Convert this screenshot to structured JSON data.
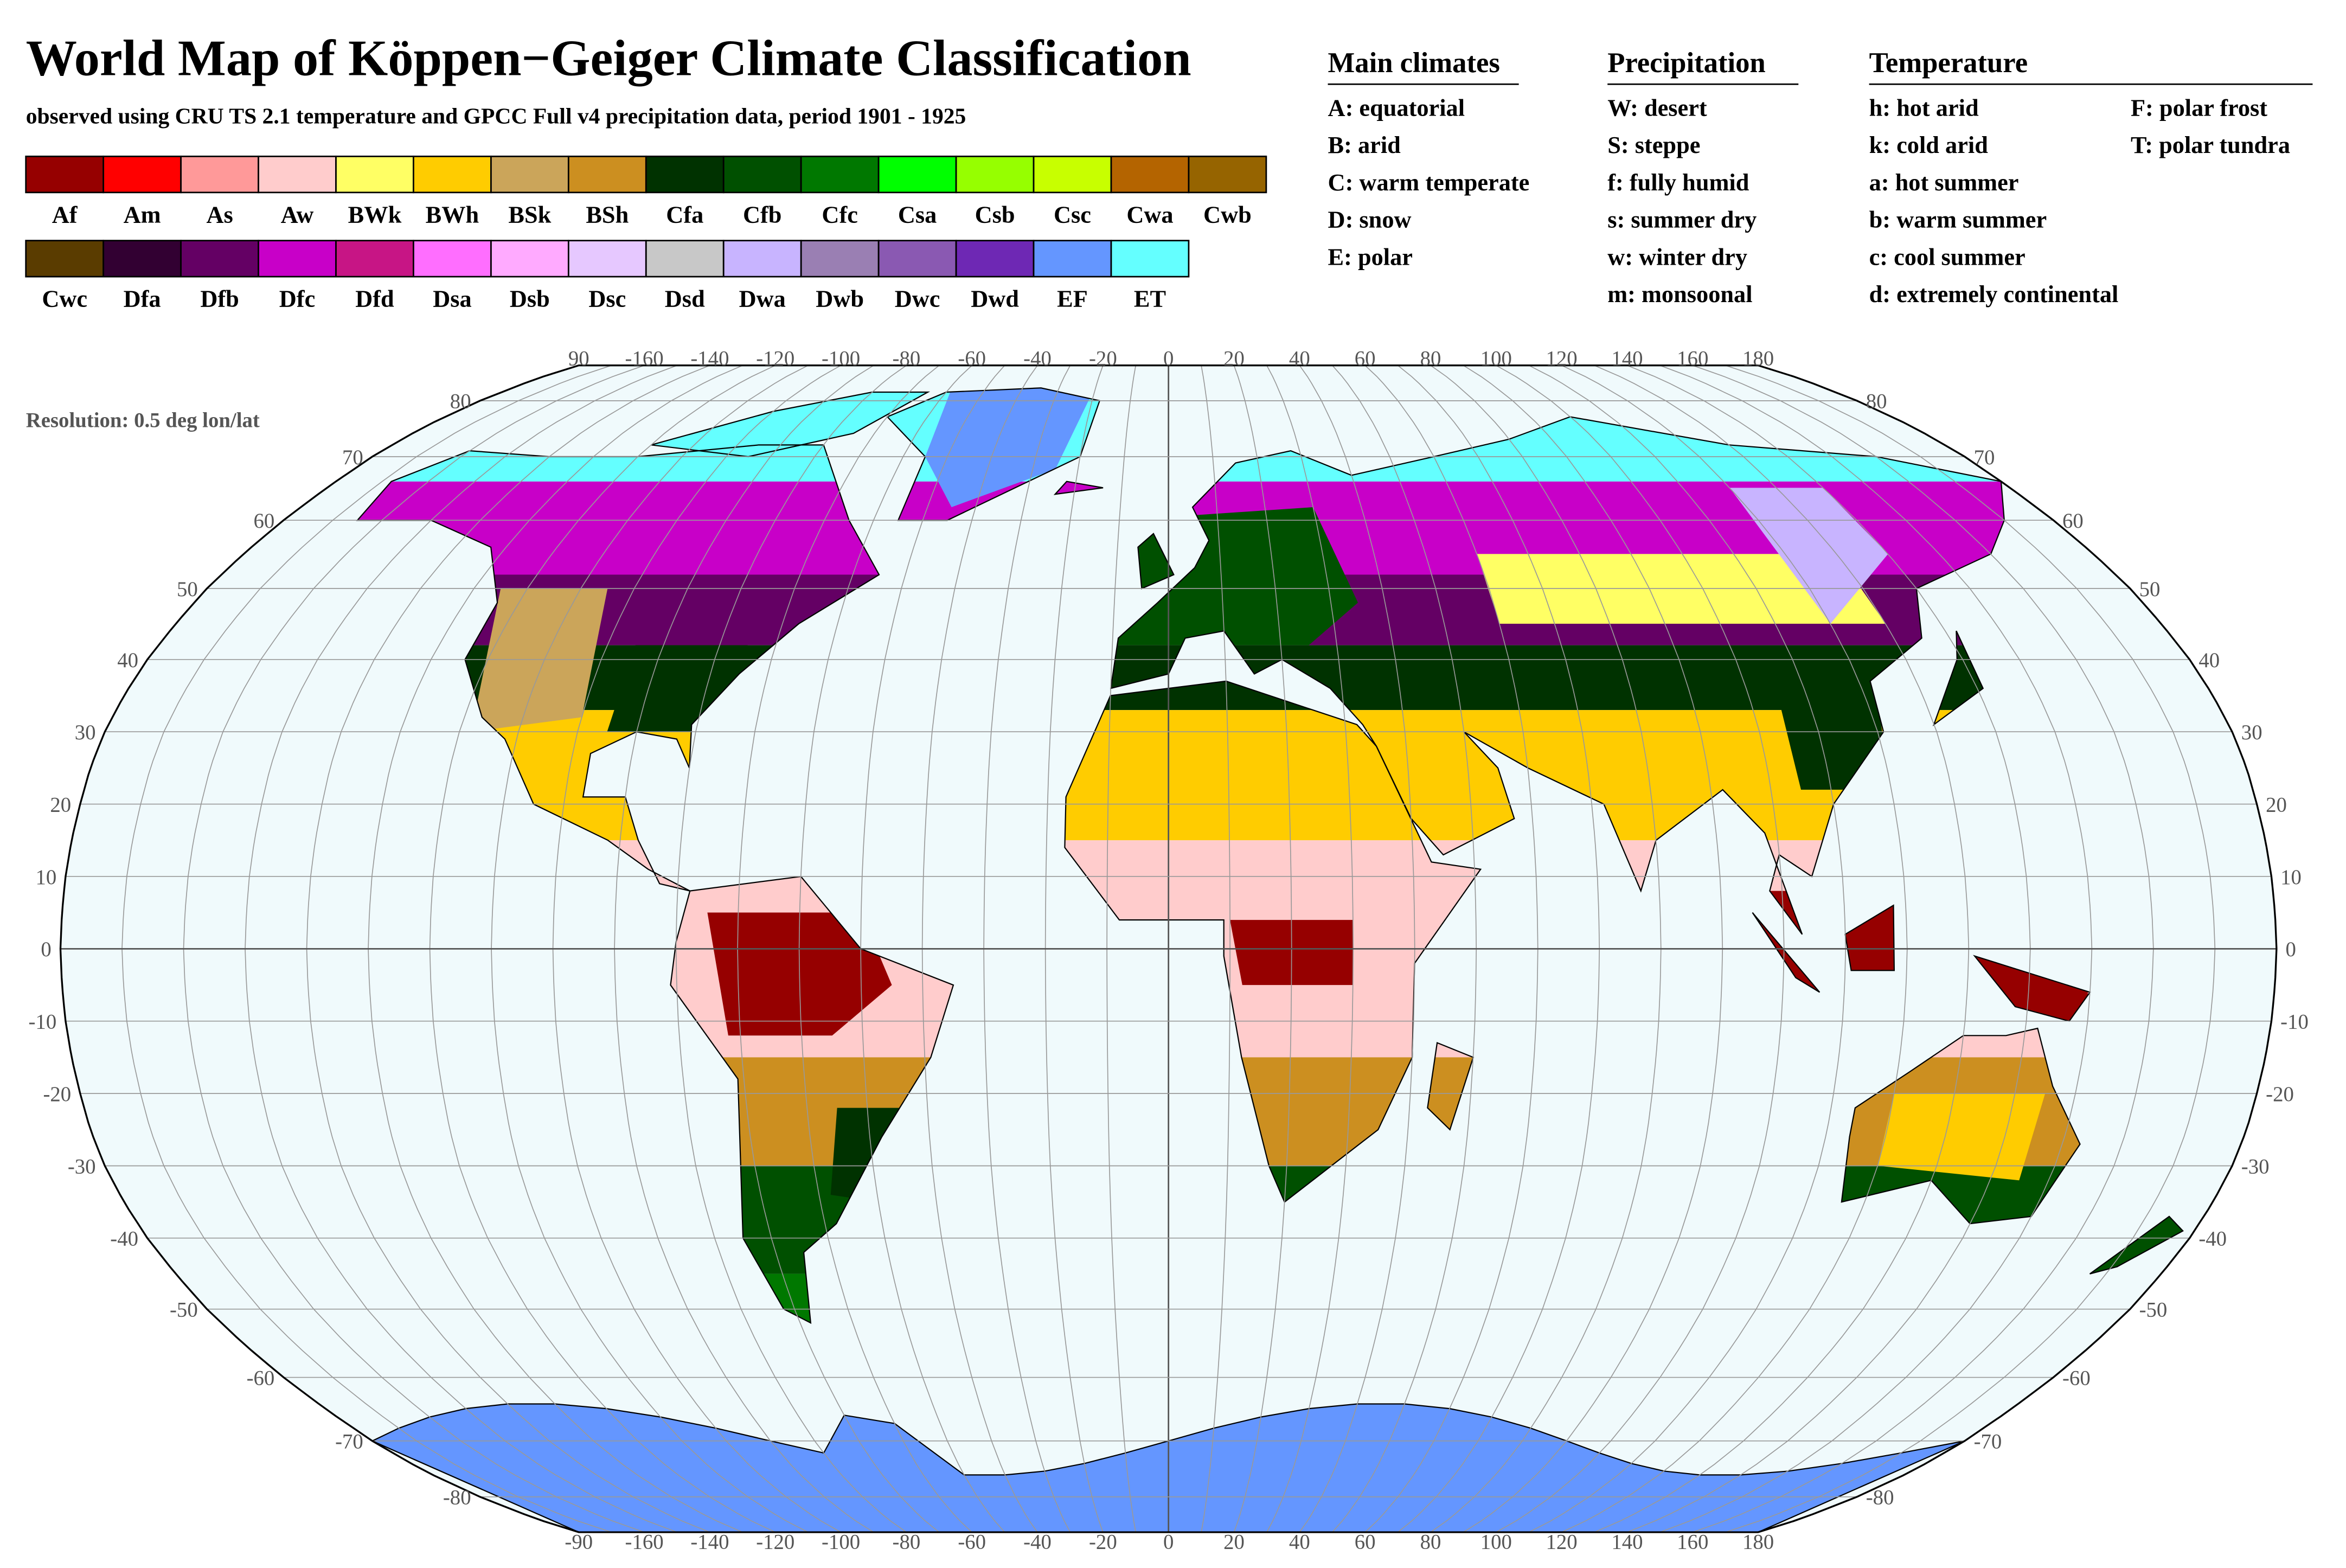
{
  "header": {
    "title": "World Map of Köppen−Geiger Climate Classification",
    "subtitle": "observed using CRU TS 2.1 temperature and GPCC Full v4 precipitation data, period 1901 - 1925"
  },
  "legend": {
    "items": [
      {
        "code": "Af",
        "color": "#960000"
      },
      {
        "code": "Am",
        "color": "#ff0000"
      },
      {
        "code": "As",
        "color": "#ff9999"
      },
      {
        "code": "Aw",
        "color": "#ffcccc"
      },
      {
        "code": "BWk",
        "color": "#ffff64"
      },
      {
        "code": "BWh",
        "color": "#ffcc00"
      },
      {
        "code": "BSk",
        "color": "#cba55a"
      },
      {
        "code": "BSh",
        "color": "#cc8f20"
      },
      {
        "code": "Cfa",
        "color": "#003200"
      },
      {
        "code": "Cfb",
        "color": "#005000"
      },
      {
        "code": "Cfc",
        "color": "#007800"
      },
      {
        "code": "Csa",
        "color": "#00ff00"
      },
      {
        "code": "Csb",
        "color": "#96ff00"
      },
      {
        "code": "Csc",
        "color": "#c8ff00"
      },
      {
        "code": "Cwa",
        "color": "#b46400"
      },
      {
        "code": "Cwb",
        "color": "#966400"
      },
      {
        "code": "Cwc",
        "color": "#5a3c00"
      },
      {
        "code": "Dfa",
        "color": "#320032"
      },
      {
        "code": "Dfb",
        "color": "#640064"
      },
      {
        "code": "Dfc",
        "color": "#c800c8"
      },
      {
        "code": "Dfd",
        "color": "#c71585"
      },
      {
        "code": "Dsa",
        "color": "#ff6eff"
      },
      {
        "code": "Dsb",
        "color": "#ffaaff"
      },
      {
        "code": "Dsc",
        "color": "#e6c8ff"
      },
      {
        "code": "Dsd",
        "color": "#c8c8c8"
      },
      {
        "code": "Dwa",
        "color": "#c8b4ff"
      },
      {
        "code": "Dwb",
        "color": "#9a7fb3"
      },
      {
        "code": "Dwc",
        "color": "#8a59b2"
      },
      {
        "code": "Dwd",
        "color": "#6e28b4"
      },
      {
        "code": "EF",
        "color": "#6496ff"
      },
      {
        "code": "ET",
        "color": "#64ffff"
      }
    ]
  },
  "key": {
    "main_climates": {
      "title": "Main climates",
      "items": [
        "A: equatorial",
        "B: arid",
        "C: warm temperate",
        "D: snow",
        "E: polar"
      ]
    },
    "precipitation": {
      "title": "Precipitation",
      "items": [
        "W: desert",
        "S: steppe",
        "f: fully humid",
        "s: summer dry",
        "w: winter dry",
        "m: monsoonal"
      ]
    },
    "temperature": {
      "title": "Temperature",
      "items": [
        "h: hot arid",
        "k: cold arid",
        "a: hot summer",
        "b: warm summer",
        "c: cool summer",
        "d: extremely continental",
        "F: polar frost",
        "T: polar tundra"
      ]
    }
  },
  "map": {
    "resolution_note": "Resolution: 0.5 deg lon/lat",
    "top_labels": [
      90,
      -160,
      -140,
      -120,
      -100,
      -80,
      -60,
      -40,
      -20,
      0,
      20,
      40,
      60,
      80,
      100,
      120,
      140,
      160,
      180
    ],
    "bottom_labels": [
      -90,
      -160,
      -140,
      -120,
      -100,
      -80,
      -60,
      -40,
      -20,
      0,
      20,
      40,
      60,
      80,
      100,
      120,
      140,
      160,
      180
    ],
    "left_labels": [
      80,
      70,
      60,
      50,
      40,
      30,
      20,
      10,
      0,
      -10,
      -20,
      -30,
      -40,
      -50,
      -60,
      -70,
      -80
    ],
    "right_labels": [
      80,
      70,
      60,
      50,
      40,
      30,
      20,
      10,
      0,
      -10,
      -20,
      -30,
      -40,
      -50,
      -60,
      -70,
      -80
    ]
  }
}
